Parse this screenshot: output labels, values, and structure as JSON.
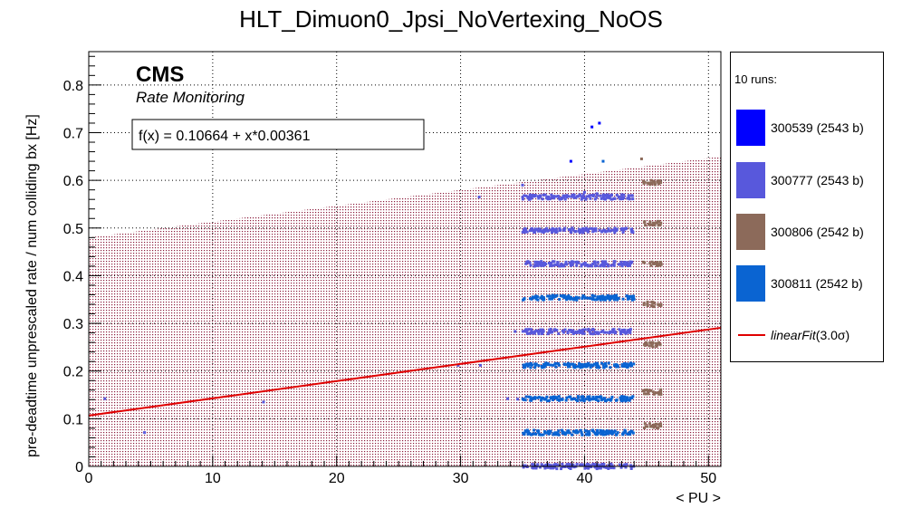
{
  "chart_data": {
    "type": "scatter",
    "title": "HLT_Dimuon0_Jpsi_NoVertexing_NoOS",
    "xlabel": "< PU >",
    "ylabel": "pre-deadtime unprescaled rate / num colliding bx [Hz]",
    "xlim": [
      0,
      51
    ],
    "ylim": [
      0,
      0.87
    ],
    "x_ticks": [
      0,
      10,
      20,
      30,
      40,
      50
    ],
    "y_ticks": [
      0,
      0.1,
      0.2,
      0.3,
      0.4,
      0.5,
      0.6,
      0.7,
      0.8
    ],
    "x_tick_labels": [
      "0",
      "10",
      "20",
      "30",
      "40",
      "50"
    ],
    "y_tick_labels": [
      "0",
      "0.1",
      "0.2",
      "0.3",
      "0.4",
      "0.5",
      "0.6",
      "0.7",
      "0.8"
    ],
    "grid": true,
    "legend_position": "outside-right",
    "cms_label": "CMS",
    "cms_sublabel": "Rate Monitoring",
    "fit_equation": "f(x) = 0.10664 + x*0.00361",
    "fit": {
      "intercept": 0.10664,
      "slope": 0.00361,
      "color": "#e00000",
      "name": "linearFit(3.0σ)",
      "name_text": "linearFit",
      "name_suffix": "(3.0σ)"
    },
    "band": {
      "lower_at_0": 0.0,
      "lower_at_51": 0.0,
      "upper_at_0": 0.48,
      "upper_at_51": 0.65,
      "color": "#8c1c3c"
    },
    "legend_header": "10 runs:",
    "series": [
      {
        "name": "300539 (2543 b)",
        "color": "#0000ff"
      },
      {
        "name": "300777 (2543 b)",
        "color": "#5858dc"
      },
      {
        "name": "300806 (2542 b)",
        "color": "#8c6a5a"
      },
      {
        "name": "300811 (2542 b)",
        "color": "#0a64d2"
      }
    ],
    "clusters": [
      {
        "x": [
          35,
          44
        ],
        "y": 0.0,
        "series": 1
      },
      {
        "x": [
          35,
          44
        ],
        "y": 0.071,
        "series": 3
      },
      {
        "x": [
          35,
          44
        ],
        "y": 0.142,
        "series": 3
      },
      {
        "x": [
          35,
          44
        ],
        "y": 0.212,
        "series": 3
      },
      {
        "x": [
          35,
          44
        ],
        "y": 0.283,
        "series": 1
      },
      {
        "x": [
          35,
          44
        ],
        "y": 0.354,
        "series": 3
      },
      {
        "x": [
          35,
          44
        ],
        "y": 0.425,
        "series": 1
      },
      {
        "x": [
          35,
          44
        ],
        "y": 0.495,
        "series": 1
      },
      {
        "x": [
          35,
          44
        ],
        "y": 0.565,
        "series": 1
      },
      {
        "x": [
          44.7,
          46.2
        ],
        "y": 0.085,
        "series": 2
      },
      {
        "x": [
          44.7,
          46.2
        ],
        "y": 0.156,
        "series": 2
      },
      {
        "x": [
          44.7,
          46.2
        ],
        "y": 0.255,
        "series": 2
      },
      {
        "x": [
          44.7,
          46.2
        ],
        "y": 0.34,
        "series": 2
      },
      {
        "x": [
          44.7,
          46.2
        ],
        "y": 0.425,
        "series": 2
      },
      {
        "x": [
          44.7,
          46.2
        ],
        "y": 0.51,
        "series": 2
      },
      {
        "x": [
          44.7,
          46.2
        ],
        "y": 0.595,
        "series": 2
      }
    ],
    "points": [
      {
        "x": 1.3,
        "y": 0.142,
        "series": 1
      },
      {
        "x": 4.5,
        "y": 0.071,
        "series": 1
      },
      {
        "x": 14.1,
        "y": 0.135,
        "series": 1
      },
      {
        "x": 29.8,
        "y": 0.212,
        "series": 1
      },
      {
        "x": 31.6,
        "y": 0.212,
        "series": 1
      },
      {
        "x": 33.8,
        "y": 0.142,
        "series": 1
      },
      {
        "x": 34.6,
        "y": 0.141,
        "series": 1
      },
      {
        "x": 34.4,
        "y": 0.283,
        "series": 1
      },
      {
        "x": 35.0,
        "y": 0.59,
        "series": 1
      },
      {
        "x": 31.5,
        "y": 0.565,
        "series": 1
      },
      {
        "x": 38.9,
        "y": 0.64,
        "series": 0
      },
      {
        "x": 40.6,
        "y": 0.712,
        "series": 0
      },
      {
        "x": 41.2,
        "y": 0.72,
        "series": 0
      },
      {
        "x": 41.5,
        "y": 0.64,
        "series": 3
      },
      {
        "x": 44.6,
        "y": 0.645,
        "series": 2
      },
      {
        "x": 40.0,
        "y": 0.575,
        "series": 1
      },
      {
        "x": 41.0,
        "y": 0.572,
        "series": 1
      },
      {
        "x": 43.0,
        "y": 0.57,
        "series": 1
      }
    ]
  }
}
